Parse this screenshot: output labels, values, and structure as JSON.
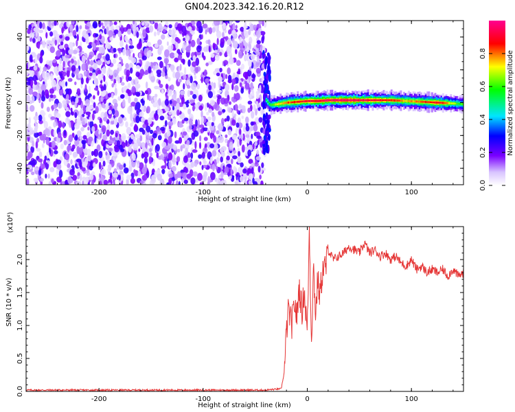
{
  "title": "GN04.2023.342.16.20.R12",
  "chart_data": [
    {
      "type": "heatmap",
      "xlabel": "Height of straight line (km)",
      "ylabel": "Frequency (Hz)",
      "xlim": [
        -270,
        150
      ],
      "ylim": [
        -50,
        50
      ],
      "xticks": [
        -200,
        -100,
        0,
        100
      ],
      "yticks": [
        -40,
        -20,
        0,
        20,
        40
      ],
      "noise_region_x": [
        -270,
        -40
      ],
      "ridge": [
        {
          "x": -40,
          "f": 1.5,
          "a": 0.55
        },
        {
          "x": -36,
          "f": -1.5,
          "a": 0.6
        },
        {
          "x": -30,
          "f": -1.0,
          "a": 0.75
        },
        {
          "x": -20,
          "f": 0.0,
          "a": 0.85
        },
        {
          "x": -10,
          "f": 0.5,
          "a": 0.9
        },
        {
          "x": 0,
          "f": 1.0,
          "a": 0.95
        },
        {
          "x": 10,
          "f": 1.0,
          "a": 0.95
        },
        {
          "x": 20,
          "f": 1.5,
          "a": 1.0
        },
        {
          "x": 40,
          "f": 1.5,
          "a": 1.0
        },
        {
          "x": 60,
          "f": 1.5,
          "a": 0.95
        },
        {
          "x": 80,
          "f": 1.5,
          "a": 0.9
        },
        {
          "x": 95,
          "f": 1.0,
          "a": 0.8
        },
        {
          "x": 110,
          "f": 0.5,
          "a": 0.85
        },
        {
          "x": 125,
          "f": 0.0,
          "a": 0.95
        },
        {
          "x": 140,
          "f": -0.5,
          "a": 0.7
        },
        {
          "x": 150,
          "f": -1.0,
          "a": 0.6
        }
      ]
    },
    {
      "type": "colorbar",
      "label": "Normalized spectral amplitude",
      "range": [
        0,
        1
      ],
      "ticks": [
        "0.0",
        "0.2",
        "0.4",
        "0.6",
        "0.8"
      ]
    },
    {
      "type": "line",
      "xlabel": "Height of straight line (km)",
      "ylabel": "SNR (10 * v/v)",
      "y_multiplier": "(x10⁴)",
      "xlim": [
        -270,
        150
      ],
      "ylim": [
        0,
        2.5
      ],
      "xticks": [
        -200,
        -100,
        0,
        100
      ],
      "yticks": [
        "0.0",
        "0.5",
        "1.0",
        "1.5",
        "2.0"
      ],
      "color": "#e53535",
      "series": [
        {
          "x": [
            -270,
            -200,
            -100,
            -40,
            -25,
            -22,
            -20,
            -18,
            -15,
            -12,
            -10,
            -8,
            -5,
            -3,
            0,
            2,
            4,
            6,
            8,
            10,
            12,
            15,
            18,
            20,
            25,
            30,
            35,
            40,
            45,
            50,
            55,
            60,
            65,
            70,
            75,
            80,
            85,
            90,
            95,
            100,
            105,
            110,
            115,
            120,
            125,
            130,
            135,
            140,
            145,
            150
          ],
          "y": [
            0.02,
            0.02,
            0.02,
            0.02,
            0.04,
            0.3,
            0.9,
            1.25,
            1.0,
            1.35,
            1.1,
            1.6,
            1.2,
            1.55,
            0.9,
            2.5,
            0.75,
            1.9,
            1.15,
            1.7,
            1.45,
            1.85,
            1.9,
            2.15,
            2.0,
            2.05,
            2.1,
            2.2,
            2.15,
            2.1,
            2.25,
            2.1,
            2.15,
            2.05,
            2.1,
            2.0,
            2.05,
            1.95,
            1.9,
            2.0,
            1.85,
            1.9,
            1.8,
            1.85,
            1.8,
            1.85,
            1.75,
            1.85,
            1.75,
            1.8
          ]
        }
      ]
    }
  ]
}
